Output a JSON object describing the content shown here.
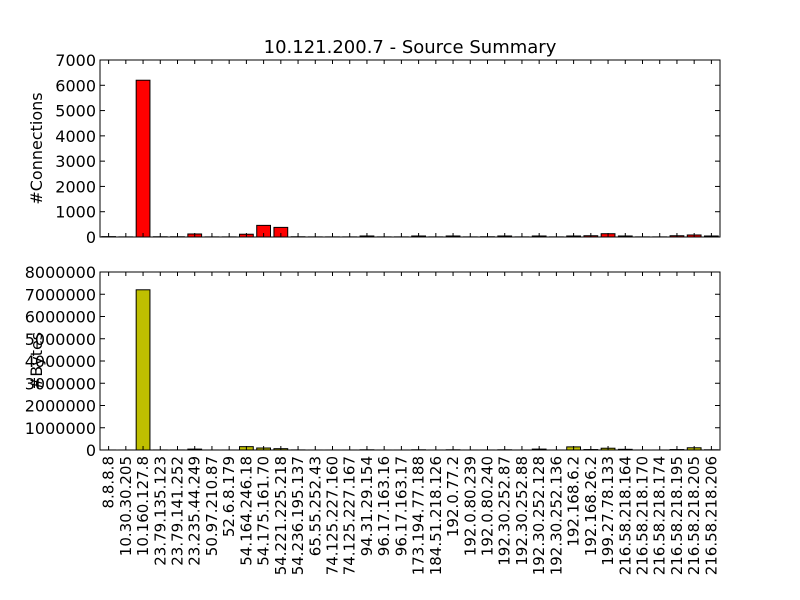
{
  "chart_data": [
    {
      "type": "bar",
      "title": "10.121.200.7 - Source Summary",
      "xlabel": "",
      "ylabel": "#Connections",
      "ylim": [
        0,
        7000
      ],
      "yticks": [
        "0",
        "1000",
        "2000",
        "3000",
        "4000",
        "5000",
        "6000",
        "7000"
      ],
      "color": "#ff0000",
      "categories": [
        "8.8.8.8",
        "10.30.30.205",
        "10.160.127.8",
        "23.79.135.123",
        "23.79.141.252",
        "23.235.44.249",
        "50.97.210.87",
        "52.6.8.179",
        "54.164.246.18",
        "54.175.161.70",
        "54.221.225.218",
        "54.236.195.137",
        "65.55.252.43",
        "74.125.227.160",
        "74.125.227.167",
        "94.31.29.154",
        "96.17.163.16",
        "96.17.163.17",
        "173.194.77.188",
        "184.51.218.126",
        "192.0.77.2",
        "192.0.80.239",
        "192.0.80.240",
        "192.30.252.87",
        "192.30.252.88",
        "192.30.252.128",
        "192.30.252.136",
        "192.168.6.2",
        "192.168.26.2",
        "199.27.78.133",
        "216.58.218.164",
        "216.58.218.170",
        "216.58.218.174",
        "216.58.218.195",
        "216.58.218.205",
        "216.58.218.206"
      ],
      "values": [
        15,
        5,
        6200,
        10,
        10,
        120,
        5,
        5,
        110,
        460,
        380,
        10,
        5,
        5,
        5,
        40,
        5,
        5,
        40,
        5,
        40,
        5,
        10,
        40,
        5,
        40,
        5,
        40,
        50,
        130,
        40,
        5,
        5,
        50,
        80,
        40
      ]
    },
    {
      "type": "bar",
      "xlabel": "",
      "ylabel": "#Bytes",
      "ylim": [
        0,
        8000000
      ],
      "yticks": [
        "0",
        "1000000",
        "2000000",
        "3000000",
        "4000000",
        "5000000",
        "6000000",
        "7000000",
        "8000000"
      ],
      "color": "#bfbf00",
      "categories": [
        "8.8.8.8",
        "10.30.30.205",
        "10.160.127.8",
        "23.79.135.123",
        "23.79.141.252",
        "23.235.44.249",
        "50.97.210.87",
        "52.6.8.179",
        "54.164.246.18",
        "54.175.161.70",
        "54.221.225.218",
        "54.236.195.137",
        "65.55.252.43",
        "74.125.227.160",
        "74.125.227.167",
        "94.31.29.154",
        "96.17.163.16",
        "96.17.163.17",
        "173.194.77.188",
        "184.51.218.126",
        "192.0.77.2",
        "192.0.80.239",
        "192.0.80.240",
        "192.30.252.87",
        "192.30.252.88",
        "192.30.252.128",
        "192.30.252.136",
        "192.168.6.2",
        "192.168.26.2",
        "199.27.78.133",
        "216.58.218.164",
        "216.58.218.170",
        "216.58.218.174",
        "216.58.218.195",
        "216.58.218.205",
        "216.58.218.206"
      ],
      "values": [
        2000,
        1000,
        7200000,
        3000,
        3000,
        40000,
        1000,
        1000,
        150000,
        90000,
        60000,
        5000,
        1000,
        1000,
        1000,
        10000,
        1000,
        1000,
        10000,
        1000,
        10000,
        1000,
        2000,
        10000,
        1000,
        40000,
        1000,
        140000,
        20000,
        80000,
        30000,
        1000,
        1000,
        20000,
        100000,
        10000
      ]
    }
  ]
}
